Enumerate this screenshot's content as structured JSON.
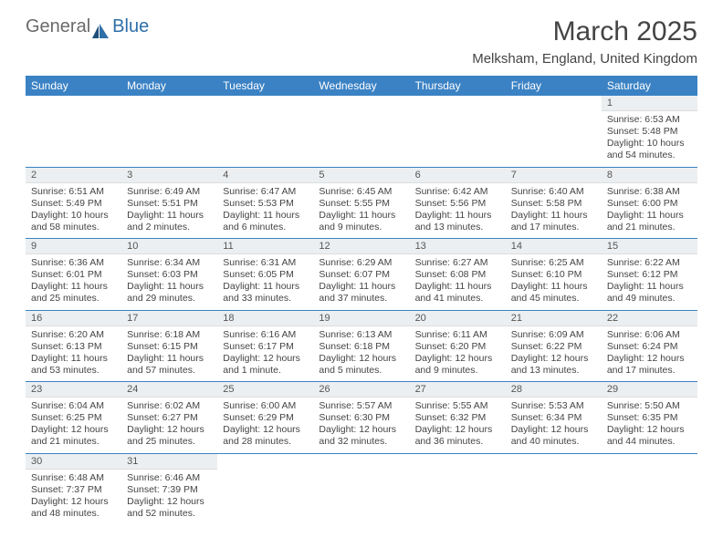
{
  "brand": {
    "part1": "General",
    "part2": "Blue"
  },
  "title": "March 2025",
  "location": "Melksham, England, United Kingdom",
  "colors": {
    "headerBg": "#3b82c4",
    "rowBorder": "#3b82c4",
    "dayNumBg": "#eceff1"
  },
  "dayHeaders": [
    "Sunday",
    "Monday",
    "Tuesday",
    "Wednesday",
    "Thursday",
    "Friday",
    "Saturday"
  ],
  "weeks": [
    [
      {
        "n": "",
        "sr": "",
        "ss": "",
        "dl": ""
      },
      {
        "n": "",
        "sr": "",
        "ss": "",
        "dl": ""
      },
      {
        "n": "",
        "sr": "",
        "ss": "",
        "dl": ""
      },
      {
        "n": "",
        "sr": "",
        "ss": "",
        "dl": ""
      },
      {
        "n": "",
        "sr": "",
        "ss": "",
        "dl": ""
      },
      {
        "n": "",
        "sr": "",
        "ss": "",
        "dl": ""
      },
      {
        "n": "1",
        "sr": "Sunrise: 6:53 AM",
        "ss": "Sunset: 5:48 PM",
        "dl": "Daylight: 10 hours and 54 minutes."
      }
    ],
    [
      {
        "n": "2",
        "sr": "Sunrise: 6:51 AM",
        "ss": "Sunset: 5:49 PM",
        "dl": "Daylight: 10 hours and 58 minutes."
      },
      {
        "n": "3",
        "sr": "Sunrise: 6:49 AM",
        "ss": "Sunset: 5:51 PM",
        "dl": "Daylight: 11 hours and 2 minutes."
      },
      {
        "n": "4",
        "sr": "Sunrise: 6:47 AM",
        "ss": "Sunset: 5:53 PM",
        "dl": "Daylight: 11 hours and 6 minutes."
      },
      {
        "n": "5",
        "sr": "Sunrise: 6:45 AM",
        "ss": "Sunset: 5:55 PM",
        "dl": "Daylight: 11 hours and 9 minutes."
      },
      {
        "n": "6",
        "sr": "Sunrise: 6:42 AM",
        "ss": "Sunset: 5:56 PM",
        "dl": "Daylight: 11 hours and 13 minutes."
      },
      {
        "n": "7",
        "sr": "Sunrise: 6:40 AM",
        "ss": "Sunset: 5:58 PM",
        "dl": "Daylight: 11 hours and 17 minutes."
      },
      {
        "n": "8",
        "sr": "Sunrise: 6:38 AM",
        "ss": "Sunset: 6:00 PM",
        "dl": "Daylight: 11 hours and 21 minutes."
      }
    ],
    [
      {
        "n": "9",
        "sr": "Sunrise: 6:36 AM",
        "ss": "Sunset: 6:01 PM",
        "dl": "Daylight: 11 hours and 25 minutes."
      },
      {
        "n": "10",
        "sr": "Sunrise: 6:34 AM",
        "ss": "Sunset: 6:03 PM",
        "dl": "Daylight: 11 hours and 29 minutes."
      },
      {
        "n": "11",
        "sr": "Sunrise: 6:31 AM",
        "ss": "Sunset: 6:05 PM",
        "dl": "Daylight: 11 hours and 33 minutes."
      },
      {
        "n": "12",
        "sr": "Sunrise: 6:29 AM",
        "ss": "Sunset: 6:07 PM",
        "dl": "Daylight: 11 hours and 37 minutes."
      },
      {
        "n": "13",
        "sr": "Sunrise: 6:27 AM",
        "ss": "Sunset: 6:08 PM",
        "dl": "Daylight: 11 hours and 41 minutes."
      },
      {
        "n": "14",
        "sr": "Sunrise: 6:25 AM",
        "ss": "Sunset: 6:10 PM",
        "dl": "Daylight: 11 hours and 45 minutes."
      },
      {
        "n": "15",
        "sr": "Sunrise: 6:22 AM",
        "ss": "Sunset: 6:12 PM",
        "dl": "Daylight: 11 hours and 49 minutes."
      }
    ],
    [
      {
        "n": "16",
        "sr": "Sunrise: 6:20 AM",
        "ss": "Sunset: 6:13 PM",
        "dl": "Daylight: 11 hours and 53 minutes."
      },
      {
        "n": "17",
        "sr": "Sunrise: 6:18 AM",
        "ss": "Sunset: 6:15 PM",
        "dl": "Daylight: 11 hours and 57 minutes."
      },
      {
        "n": "18",
        "sr": "Sunrise: 6:16 AM",
        "ss": "Sunset: 6:17 PM",
        "dl": "Daylight: 12 hours and 1 minute."
      },
      {
        "n": "19",
        "sr": "Sunrise: 6:13 AM",
        "ss": "Sunset: 6:18 PM",
        "dl": "Daylight: 12 hours and 5 minutes."
      },
      {
        "n": "20",
        "sr": "Sunrise: 6:11 AM",
        "ss": "Sunset: 6:20 PM",
        "dl": "Daylight: 12 hours and 9 minutes."
      },
      {
        "n": "21",
        "sr": "Sunrise: 6:09 AM",
        "ss": "Sunset: 6:22 PM",
        "dl": "Daylight: 12 hours and 13 minutes."
      },
      {
        "n": "22",
        "sr": "Sunrise: 6:06 AM",
        "ss": "Sunset: 6:24 PM",
        "dl": "Daylight: 12 hours and 17 minutes."
      }
    ],
    [
      {
        "n": "23",
        "sr": "Sunrise: 6:04 AM",
        "ss": "Sunset: 6:25 PM",
        "dl": "Daylight: 12 hours and 21 minutes."
      },
      {
        "n": "24",
        "sr": "Sunrise: 6:02 AM",
        "ss": "Sunset: 6:27 PM",
        "dl": "Daylight: 12 hours and 25 minutes."
      },
      {
        "n": "25",
        "sr": "Sunrise: 6:00 AM",
        "ss": "Sunset: 6:29 PM",
        "dl": "Daylight: 12 hours and 28 minutes."
      },
      {
        "n": "26",
        "sr": "Sunrise: 5:57 AM",
        "ss": "Sunset: 6:30 PM",
        "dl": "Daylight: 12 hours and 32 minutes."
      },
      {
        "n": "27",
        "sr": "Sunrise: 5:55 AM",
        "ss": "Sunset: 6:32 PM",
        "dl": "Daylight: 12 hours and 36 minutes."
      },
      {
        "n": "28",
        "sr": "Sunrise: 5:53 AM",
        "ss": "Sunset: 6:34 PM",
        "dl": "Daylight: 12 hours and 40 minutes."
      },
      {
        "n": "29",
        "sr": "Sunrise: 5:50 AM",
        "ss": "Sunset: 6:35 PM",
        "dl": "Daylight: 12 hours and 44 minutes."
      }
    ],
    [
      {
        "n": "30",
        "sr": "Sunrise: 6:48 AM",
        "ss": "Sunset: 7:37 PM",
        "dl": "Daylight: 12 hours and 48 minutes."
      },
      {
        "n": "31",
        "sr": "Sunrise: 6:46 AM",
        "ss": "Sunset: 7:39 PM",
        "dl": "Daylight: 12 hours and 52 minutes."
      },
      {
        "n": "",
        "sr": "",
        "ss": "",
        "dl": ""
      },
      {
        "n": "",
        "sr": "",
        "ss": "",
        "dl": ""
      },
      {
        "n": "",
        "sr": "",
        "ss": "",
        "dl": ""
      },
      {
        "n": "",
        "sr": "",
        "ss": "",
        "dl": ""
      },
      {
        "n": "",
        "sr": "",
        "ss": "",
        "dl": ""
      }
    ]
  ]
}
